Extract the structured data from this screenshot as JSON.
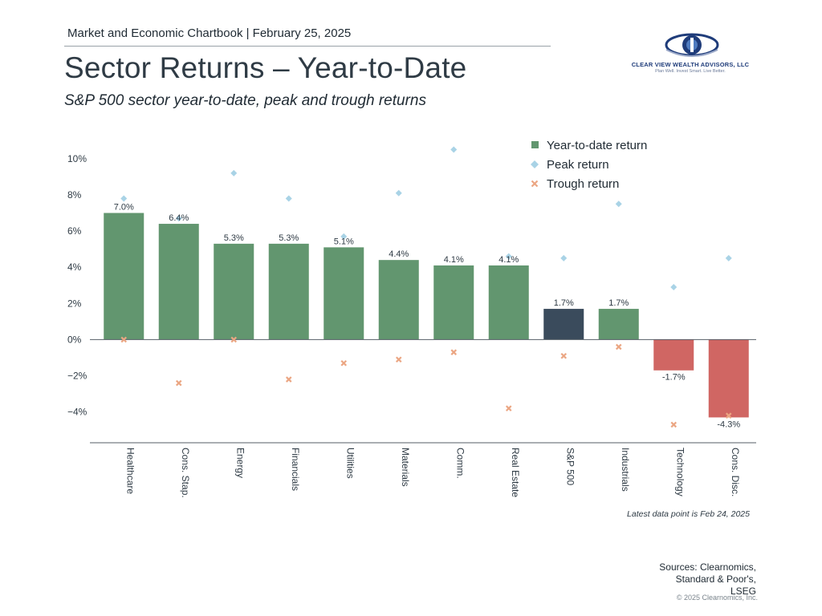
{
  "header": {
    "chartbook": "Market and Economic Chartbook | February 25, 2025",
    "title": "Sector Returns – Year-to-Date",
    "subtitle": "S&P 500 sector year-to-date, peak and trough returns"
  },
  "logo": {
    "name": "CLEAR VIEW WEALTH ADVISORS, LLC",
    "tagline": "Plan Well. Invest Smart. Live Better."
  },
  "colors": {
    "sector_bar": "#62966f",
    "sp500_bar": "#3a4b5c",
    "negative_bar": "#d06663",
    "peak_marker": "#a9d3e6",
    "trough_marker": "#eba683"
  },
  "chart_data": {
    "type": "bar",
    "title": "",
    "xlabel": "",
    "ylabel": "",
    "ylim": [
      -5.7,
      11.5
    ],
    "yticks": [
      10,
      8,
      6,
      4,
      2,
      0,
      -2,
      -4
    ],
    "ytick_labels": [
      "10%",
      "8%",
      "6%",
      "4%",
      "2%",
      "0%",
      "−2%",
      "−4%"
    ],
    "grid": false,
    "legend_position": "top-right",
    "categories": [
      "Healthcare",
      "Cons. Stap.",
      "Energy",
      "Financials",
      "Utilities",
      "Materials",
      "Comm.",
      "Real Estate",
      "S&P 500",
      "Industrials",
      "Technology",
      "Cons. Disc."
    ],
    "series": [
      {
        "name": "Year-to-date return",
        "kind": "bar",
        "values": [
          7.0,
          6.4,
          5.3,
          5.3,
          5.1,
          4.4,
          4.1,
          4.1,
          1.7,
          1.7,
          -1.7,
          -4.3
        ],
        "labels": [
          "7.0%",
          "6.4%",
          "5.3%",
          "5.3%",
          "5.1%",
          "4.4%",
          "4.1%",
          "4.1%",
          "1.7%",
          "1.7%",
          "-1.7%",
          "-4.3%"
        ]
      },
      {
        "name": "Peak return",
        "kind": "marker",
        "values": [
          7.8,
          6.7,
          9.2,
          7.8,
          5.7,
          8.1,
          10.5,
          4.6,
          4.5,
          7.5,
          2.9,
          4.5
        ]
      },
      {
        "name": "Trough return",
        "kind": "marker",
        "values": [
          0.0,
          -2.4,
          0.0,
          -2.2,
          -1.3,
          -1.1,
          -0.7,
          -3.8,
          -0.9,
          -0.4,
          -4.7,
          -4.2
        ]
      }
    ]
  },
  "footer": {
    "note": "Latest data point is Feb 24, 2025",
    "sources": [
      "Sources: Clearnomics,",
      "Standard & Poor's,",
      "LSEG"
    ],
    "copyright": "© 2025 Clearnomics, Inc."
  }
}
